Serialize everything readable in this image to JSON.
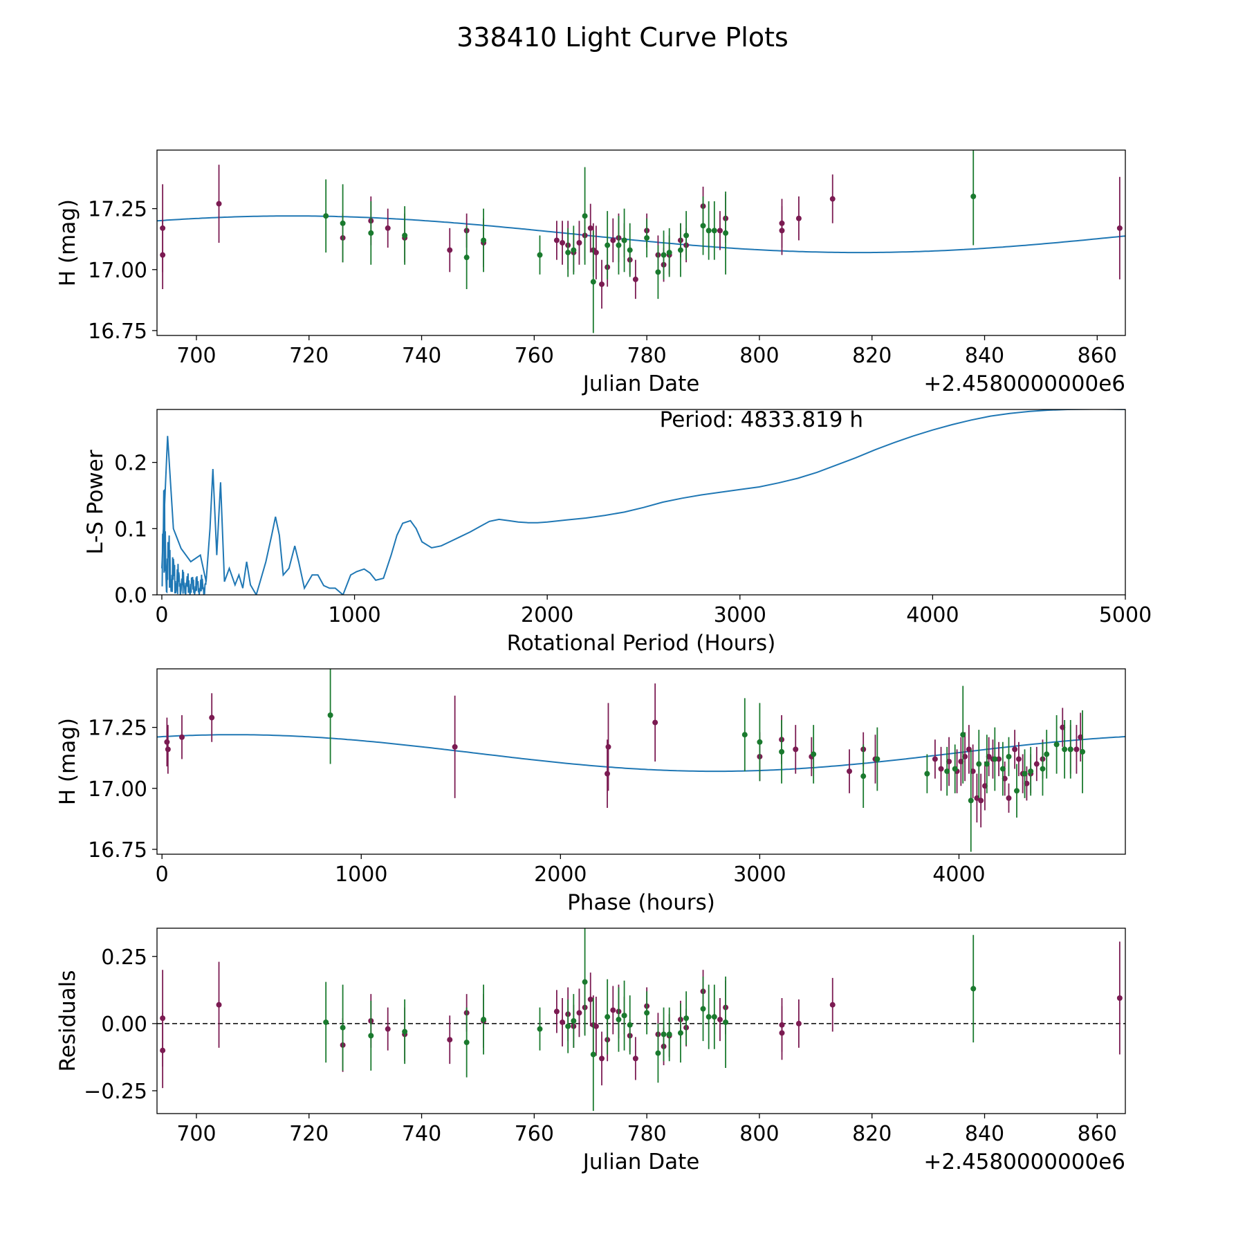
{
  "figure": {
    "title": "338410 Light Curve Plots"
  },
  "colors": {
    "fit": "#1f77b4",
    "band_r": "#7b1b52",
    "band_g": "#1a7a2e",
    "axis": "#000000"
  },
  "chart_data": [
    {
      "id": "lightcurve",
      "type": "scatter",
      "title": "",
      "xlabel": "Julian Date",
      "ylabel": "H (mag)",
      "offset_label": "+2.4580000000e6",
      "xlim": [
        693,
        865
      ],
      "ylim": [
        16.73,
        17.49
      ],
      "xticks": [
        700,
        720,
        740,
        760,
        780,
        800,
        820,
        840,
        860
      ],
      "xtick_labels": [
        "700",
        "720",
        "740",
        "760",
        "780",
        "800",
        "820",
        "840",
        "860"
      ],
      "yticks": [
        16.75,
        17.0,
        17.25
      ],
      "ytick_labels": [
        "16.75",
        "17.00",
        "17.25"
      ],
      "fit": {
        "name": "sinusoid fit",
        "mean": 17.145,
        "amplitude": 0.075,
        "period_days": 201.4,
        "peak_x": 717.0
      },
      "series": [
        {
          "name": "red band",
          "x": [
            694,
            694,
            704,
            726,
            731,
            734,
            737,
            745,
            748,
            751,
            764,
            765,
            766,
            767,
            768,
            769,
            770,
            770.5,
            771,
            772,
            773,
            774,
            775,
            776,
            777,
            778,
            780,
            782,
            783,
            784,
            786,
            787,
            790,
            793,
            794,
            804,
            804,
            807,
            813,
            864
          ],
          "y": [
            17.06,
            17.17,
            17.27,
            17.13,
            17.2,
            17.17,
            17.13,
            17.08,
            17.16,
            17.11,
            17.12,
            17.11,
            17.1,
            17.07,
            17.11,
            17.14,
            17.17,
            17.08,
            17.07,
            16.94,
            17.01,
            17.12,
            17.13,
            17.12,
            17.04,
            16.96,
            17.16,
            17.06,
            17.02,
            17.06,
            17.12,
            17.1,
            17.26,
            17.16,
            17.21,
            17.19,
            17.16,
            17.21,
            17.29,
            17.17
          ],
          "err": [
            0.14,
            0.18,
            0.16,
            0.1,
            0.1,
            0.08,
            0.1,
            0.09,
            0.07,
            0.1,
            0.08,
            0.09,
            0.1,
            0.08,
            0.09,
            0.1,
            0.1,
            0.11,
            0.11,
            0.1,
            0.08,
            0.09,
            0.1,
            0.07,
            0.06,
            0.08,
            0.07,
            0.08,
            0.07,
            0.08,
            0.07,
            0.07,
            0.08,
            0.08,
            0.1,
            0.1,
            0.1,
            0.09,
            0.1,
            0.21
          ]
        },
        {
          "name": "green band",
          "x": [
            723,
            726,
            731,
            737,
            748,
            751,
            761,
            766,
            767,
            769,
            770.5,
            773,
            775,
            776,
            777,
            780,
            782,
            783,
            784,
            786,
            787,
            790,
            791,
            792,
            794,
            838
          ],
          "y": [
            17.22,
            17.19,
            17.15,
            17.14,
            17.05,
            17.12,
            17.06,
            17.07,
            17.08,
            17.22,
            16.95,
            17.1,
            17.1,
            17.12,
            17.08,
            17.13,
            16.99,
            17.06,
            17.07,
            17.08,
            17.14,
            17.18,
            17.16,
            17.16,
            17.15,
            17.3
          ],
          "err": [
            0.15,
            0.16,
            0.13,
            0.12,
            0.13,
            0.13,
            0.08,
            0.1,
            0.1,
            0.2,
            0.21,
            0.14,
            0.12,
            0.13,
            0.11,
            0.08,
            0.11,
            0.1,
            0.1,
            0.11,
            0.1,
            0.12,
            0.12,
            0.12,
            0.17,
            0.2
          ]
        }
      ]
    },
    {
      "id": "periodogram",
      "type": "line",
      "title": "",
      "xlabel": "Rotational Period (Hours)",
      "ylabel": "L-S Power",
      "annotation": "Period: 4833.819 h",
      "xlim": [
        -25,
        5000
      ],
      "ylim": [
        0,
        0.28
      ],
      "xticks": [
        0,
        1000,
        2000,
        3000,
        4000,
        5000
      ],
      "xtick_labels": [
        "0",
        "1000",
        "2000",
        "3000",
        "4000",
        "5000"
      ],
      "yticks": [
        0.0,
        0.1,
        0.2
      ],
      "ytick_labels": [
        "0.0",
        "0.1",
        "0.2"
      ],
      "series": [
        {
          "name": "Lomb-Scargle power",
          "x": [
            0,
            30,
            60,
            100,
            150,
            200,
            230,
            250,
            265,
            285,
            305,
            325,
            350,
            380,
            400,
            420,
            440,
            460,
            490,
            510,
            540,
            570,
            590,
            610,
            630,
            660,
            690,
            710,
            740,
            780,
            810,
            840,
            870,
            900,
            940,
            980,
            1010,
            1050,
            1080,
            1110,
            1150,
            1190,
            1220,
            1250,
            1290,
            1320,
            1350,
            1400,
            1450,
            1500,
            1550,
            1600,
            1650,
            1700,
            1750,
            1800,
            1850,
            1900,
            1950,
            2000,
            2100,
            2200,
            2300,
            2400,
            2500,
            2600,
            2700,
            2800,
            2900,
            3000,
            3100,
            3200,
            3300,
            3400,
            3500,
            3600,
            3700,
            3800,
            3900,
            4000,
            4100,
            4200,
            4300,
            4400,
            4500,
            4600,
            4700,
            4833,
            4900,
            5000
          ],
          "y": [
            0.04,
            0.24,
            0.1,
            0.07,
            0.05,
            0.06,
            0.02,
            0.1,
            0.19,
            0.06,
            0.17,
            0.02,
            0.04,
            0.015,
            0.03,
            0.01,
            0.05,
            0.015,
            0.0,
            0.02,
            0.05,
            0.09,
            0.118,
            0.09,
            0.03,
            0.04,
            0.074,
            0.05,
            0.01,
            0.03,
            0.03,
            0.014,
            0.01,
            0.01,
            0.0,
            0.03,
            0.035,
            0.039,
            0.033,
            0.022,
            0.025,
            0.06,
            0.09,
            0.108,
            0.112,
            0.1,
            0.08,
            0.071,
            0.074,
            0.081,
            0.088,
            0.095,
            0.103,
            0.111,
            0.114,
            0.112,
            0.11,
            0.109,
            0.109,
            0.11,
            0.113,
            0.116,
            0.12,
            0.125,
            0.132,
            0.14,
            0.146,
            0.151,
            0.155,
            0.159,
            0.163,
            0.169,
            0.176,
            0.185,
            0.196,
            0.207,
            0.219,
            0.23,
            0.24,
            0.249,
            0.257,
            0.264,
            0.27,
            0.274,
            0.277,
            0.279,
            0.28,
            0.2805,
            0.2805,
            0.28
          ]
        }
      ]
    },
    {
      "id": "phased",
      "type": "scatter",
      "title": "",
      "xlabel": "Phase (hours)",
      "ylabel": "H (mag)",
      "xlim": [
        -25,
        4835
      ],
      "ylim": [
        16.73,
        17.49
      ],
      "xticks": [
        0,
        1000,
        2000,
        3000,
        4000
      ],
      "xtick_labels": [
        "0",
        "1000",
        "2000",
        "3000",
        "4000"
      ],
      "yticks": [
        16.75,
        17.0,
        17.25
      ],
      "ytick_labels": [
        "16.75",
        "17.00",
        "17.25"
      ],
      "fit": {
        "name": "sinusoid fit",
        "mean": 17.145,
        "amplitude": 0.075,
        "period_hours": 4833.819,
        "peak_x": 360
      },
      "series": [
        {
          "name": "red band",
          "x": [
            25,
            30,
            100,
            250,
            1470,
            2235,
            2240,
            2475,
            3000,
            3110,
            3180,
            3260,
            3450,
            3520,
            3580,
            3880,
            3910,
            3950,
            3990,
            4010,
            4030,
            4050,
            4070,
            4090,
            4110,
            4130,
            4150,
            4170,
            4200,
            4230,
            4250,
            4280,
            4300,
            4320,
            4340,
            4360,
            4390,
            4420,
            4520,
            4560,
            4590,
            4610
          ],
          "y": [
            17.19,
            17.16,
            17.21,
            17.29,
            17.17,
            17.06,
            17.17,
            17.27,
            17.13,
            17.2,
            17.16,
            17.13,
            17.07,
            17.16,
            17.12,
            17.12,
            17.08,
            17.11,
            17.07,
            17.11,
            17.13,
            17.16,
            17.07,
            16.96,
            16.95,
            17.01,
            17.13,
            17.12,
            17.12,
            17.04,
            16.96,
            17.16,
            17.12,
            17.06,
            17.02,
            17.06,
            17.1,
            17.12,
            17.25,
            17.16,
            17.16,
            17.21
          ],
          "err": [
            0.1,
            0.1,
            0.09,
            0.1,
            0.21,
            0.14,
            0.18,
            0.16,
            0.1,
            0.1,
            0.1,
            0.08,
            0.09,
            0.07,
            0.1,
            0.08,
            0.09,
            0.1,
            0.09,
            0.1,
            0.1,
            0.1,
            0.11,
            0.1,
            0.11,
            0.1,
            0.08,
            0.08,
            0.07,
            0.07,
            0.06,
            0.08,
            0.07,
            0.08,
            0.07,
            0.08,
            0.07,
            0.08,
            0.08,
            0.1,
            0.1,
            0.1
          ]
        },
        {
          "name": "green band",
          "x": [
            845,
            2925,
            3000,
            3110,
            3270,
            3520,
            3590,
            3840,
            3940,
            3980,
            4020,
            4060,
            4100,
            4140,
            4180,
            4220,
            4250,
            4290,
            4330,
            4360,
            4420,
            4440,
            4490,
            4530,
            4560,
            4620
          ],
          "y": [
            17.3,
            17.22,
            17.19,
            17.15,
            17.14,
            17.05,
            17.12,
            17.06,
            17.07,
            17.08,
            17.22,
            16.95,
            17.1,
            17.1,
            17.12,
            17.08,
            17.13,
            16.99,
            17.06,
            17.07,
            17.08,
            17.14,
            17.18,
            17.16,
            17.16,
            17.15
          ],
          "err": [
            0.2,
            0.15,
            0.16,
            0.13,
            0.12,
            0.13,
            0.13,
            0.08,
            0.1,
            0.1,
            0.2,
            0.21,
            0.14,
            0.12,
            0.13,
            0.11,
            0.08,
            0.11,
            0.1,
            0.1,
            0.11,
            0.1,
            0.12,
            0.12,
            0.12,
            0.17
          ]
        }
      ]
    },
    {
      "id": "residuals",
      "type": "scatter",
      "title": "",
      "xlabel": "Julian Date",
      "ylabel": "Residuals",
      "offset_label": "+2.4580000000e6",
      "xlim": [
        693,
        865
      ],
      "ylim": [
        -0.335,
        0.355
      ],
      "xticks": [
        700,
        720,
        740,
        760,
        780,
        800,
        820,
        840,
        860
      ],
      "xtick_labels": [
        "700",
        "720",
        "740",
        "760",
        "780",
        "800",
        "820",
        "840",
        "860"
      ],
      "yticks": [
        -0.25,
        0.0,
        0.25
      ],
      "ytick_labels": [
        "−0.25",
        "0.00",
        "0.25"
      ],
      "zero_line": 0,
      "series": [
        {
          "name": "red band",
          "x": [
            694,
            694,
            704,
            726,
            731,
            734,
            737,
            745,
            748,
            751,
            764,
            765,
            766,
            767,
            768,
            769,
            770,
            770.5,
            771,
            772,
            773,
            774,
            775,
            776,
            777,
            778,
            780,
            782,
            783,
            784,
            786,
            787,
            790,
            793,
            794,
            804,
            804,
            807,
            813,
            864
          ],
          "y": [
            -0.1,
            0.02,
            0.07,
            -0.08,
            0.01,
            -0.02,
            -0.04,
            -0.06,
            0.04,
            0.01,
            0.045,
            0.005,
            0.035,
            -0.01,
            0.04,
            0.06,
            0.09,
            -0.005,
            -0.01,
            -0.13,
            -0.06,
            0.05,
            0.045,
            0.03,
            -0.045,
            -0.13,
            0.065,
            -0.04,
            -0.085,
            -0.045,
            0.015,
            -0.015,
            0.12,
            0.015,
            0.06,
            -0.005,
            -0.035,
            0.0,
            0.07,
            0.095
          ],
          "err": [
            0.14,
            0.18,
            0.16,
            0.1,
            0.1,
            0.08,
            0.1,
            0.09,
            0.07,
            0.1,
            0.08,
            0.09,
            0.1,
            0.08,
            0.09,
            0.1,
            0.1,
            0.11,
            0.11,
            0.1,
            0.08,
            0.09,
            0.1,
            0.07,
            0.06,
            0.08,
            0.07,
            0.08,
            0.07,
            0.08,
            0.07,
            0.07,
            0.08,
            0.08,
            0.1,
            0.1,
            0.1,
            0.09,
            0.1,
            0.21
          ]
        },
        {
          "name": "green band",
          "x": [
            723,
            726,
            731,
            737,
            748,
            751,
            761,
            766,
            767,
            769,
            770.5,
            773,
            775,
            776,
            777,
            780,
            782,
            783,
            784,
            786,
            787,
            790,
            791,
            792,
            794,
            838
          ],
          "y": [
            0.005,
            -0.015,
            -0.045,
            -0.03,
            -0.07,
            0.015,
            -0.02,
            -0.01,
            0.01,
            0.155,
            -0.115,
            0.025,
            0.015,
            0.03,
            -0.005,
            0.04,
            -0.11,
            -0.04,
            -0.04,
            -0.035,
            0.02,
            0.055,
            0.025,
            0.025,
            0.005,
            0.13
          ],
          "err": [
            0.15,
            0.16,
            0.13,
            0.12,
            0.13,
            0.13,
            0.08,
            0.1,
            0.1,
            0.2,
            0.21,
            0.14,
            0.12,
            0.13,
            0.11,
            0.08,
            0.11,
            0.1,
            0.1,
            0.11,
            0.1,
            0.12,
            0.12,
            0.12,
            0.17,
            0.2
          ]
        }
      ]
    }
  ]
}
